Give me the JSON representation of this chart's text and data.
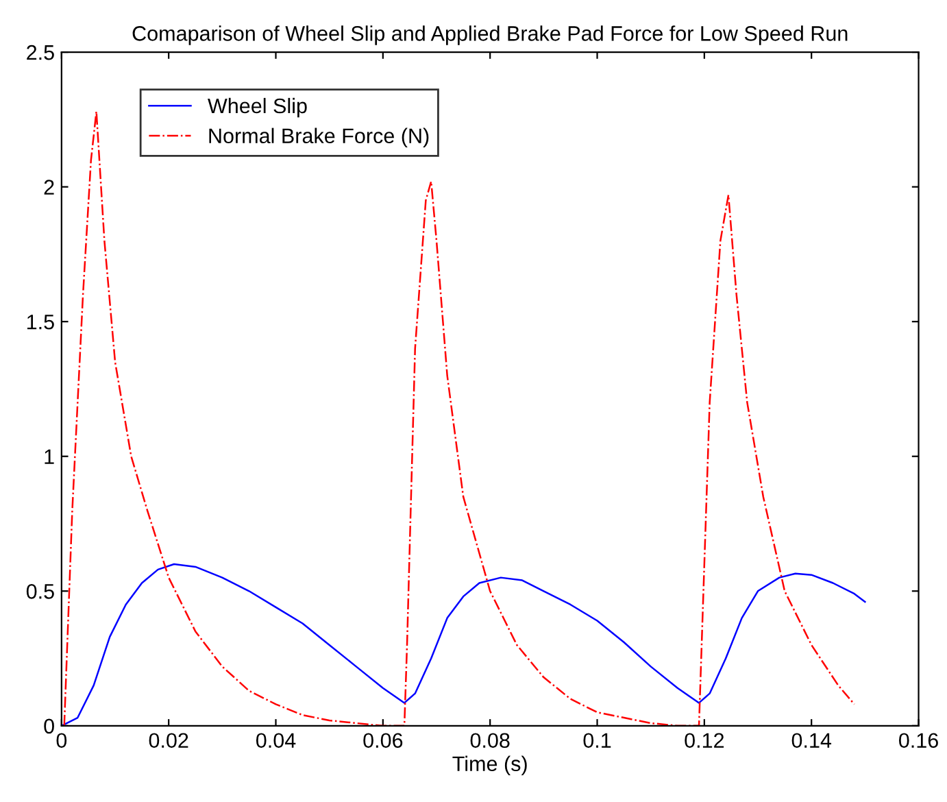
{
  "chart_data": {
    "type": "line",
    "title": "Comaparison of Wheel Slip and Applied Brake Pad Force for Low Speed Run",
    "xlabel": "Time (s)",
    "xlim": [
      0,
      0.16
    ],
    "xticks": [
      0,
      0.02,
      0.04,
      0.06,
      0.08,
      0.1,
      0.12,
      0.14,
      0.16
    ],
    "ylim": [
      0,
      2.5
    ],
    "yticks": [
      0,
      0.5,
      1,
      1.5,
      2,
      2.5
    ],
    "grid": false,
    "legend": "top left",
    "series": [
      {
        "name": "Wheel Slip",
        "color": "#0000ff",
        "line_style": "solid",
        "x": [
          0,
          0.003,
          0.006,
          0.009,
          0.012,
          0.015,
          0.018,
          0.021,
          0.025,
          0.03,
          0.035,
          0.04,
          0.045,
          0.05,
          0.055,
          0.06,
          0.064,
          0.066,
          0.069,
          0.072,
          0.075,
          0.078,
          0.082,
          0.086,
          0.09,
          0.095,
          0.1,
          0.105,
          0.11,
          0.115,
          0.119,
          0.121,
          0.124,
          0.127,
          0.13,
          0.134,
          0.137,
          0.14,
          0.144,
          0.148,
          0.15
        ],
        "values": [
          0,
          0.03,
          0.15,
          0.33,
          0.45,
          0.53,
          0.58,
          0.6,
          0.59,
          0.55,
          0.5,
          0.44,
          0.38,
          0.3,
          0.22,
          0.14,
          0.085,
          0.12,
          0.25,
          0.4,
          0.48,
          0.53,
          0.55,
          0.54,
          0.5,
          0.45,
          0.39,
          0.31,
          0.22,
          0.14,
          0.085,
          0.12,
          0.25,
          0.4,
          0.5,
          0.55,
          0.565,
          0.56,
          0.53,
          0.49,
          0.46
        ]
      },
      {
        "name": "Normal Brake Force (N)",
        "color": "#ff0000",
        "line_style": "dashdot",
        "x": [
          0.0005,
          0.002,
          0.004,
          0.0055,
          0.0065,
          0.008,
          0.01,
          0.013,
          0.016,
          0.02,
          0.025,
          0.03,
          0.035,
          0.04,
          0.045,
          0.05,
          0.055,
          0.06,
          0.064,
          0.0645,
          0.066,
          0.068,
          0.069,
          0.07,
          0.072,
          0.075,
          0.08,
          0.085,
          0.09,
          0.095,
          0.1,
          0.105,
          0.11,
          0.115,
          0.119,
          0.1195,
          0.121,
          0.123,
          0.1245,
          0.126,
          0.128,
          0.131,
          0.135,
          0.14,
          0.145,
          0.148
        ],
        "values": [
          0,
          0.8,
          1.6,
          2.1,
          2.28,
          1.8,
          1.35,
          1.0,
          0.8,
          0.55,
          0.35,
          0.22,
          0.13,
          0.08,
          0.04,
          0.02,
          0.01,
          0,
          0,
          0.3,
          1.4,
          1.95,
          2.02,
          1.8,
          1.3,
          0.85,
          0.5,
          0.3,
          0.18,
          0.1,
          0.05,
          0.03,
          0.01,
          0,
          0,
          0.3,
          1.2,
          1.8,
          1.97,
          1.6,
          1.2,
          0.85,
          0.5,
          0.3,
          0.15,
          0.08
        ]
      }
    ]
  }
}
